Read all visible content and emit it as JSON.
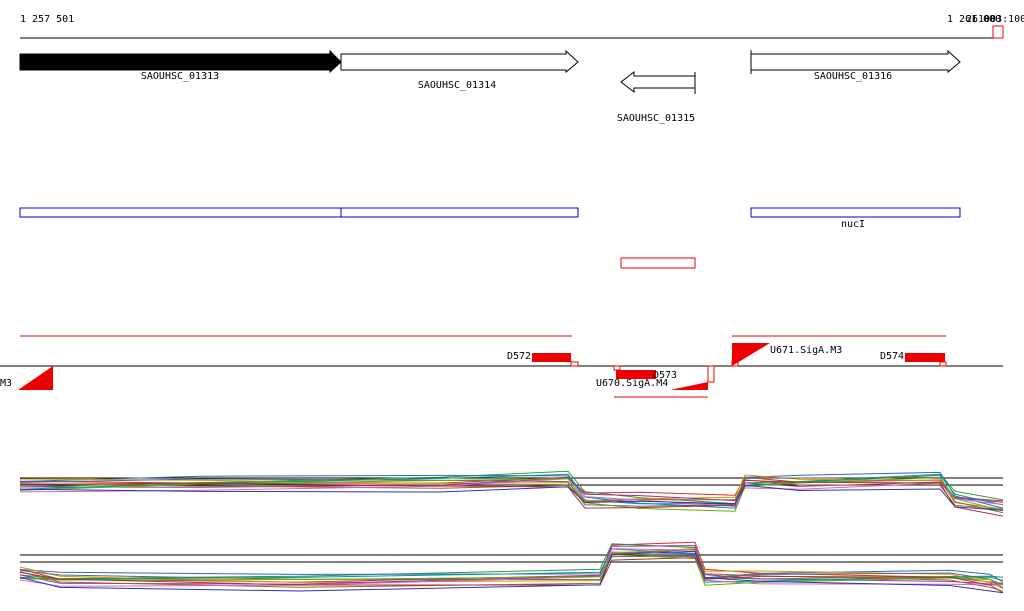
{
  "ruler": {
    "start": "1 257 501",
    "end": "1 261 000",
    "end_overlap": "261003:100"
  },
  "genes": [
    "SAOUHSC_01313",
    "SAOUHSC_01314",
    "SAOUHSC_01315",
    "SAOUHSC_01316"
  ],
  "region_label": "nucI",
  "features": {
    "d572": "D572",
    "d573": "D573",
    "d574": "D574",
    "u670": "U670.SigA.M4",
    "u671": "U671.SigA.M3",
    "m3": "M3"
  }
}
